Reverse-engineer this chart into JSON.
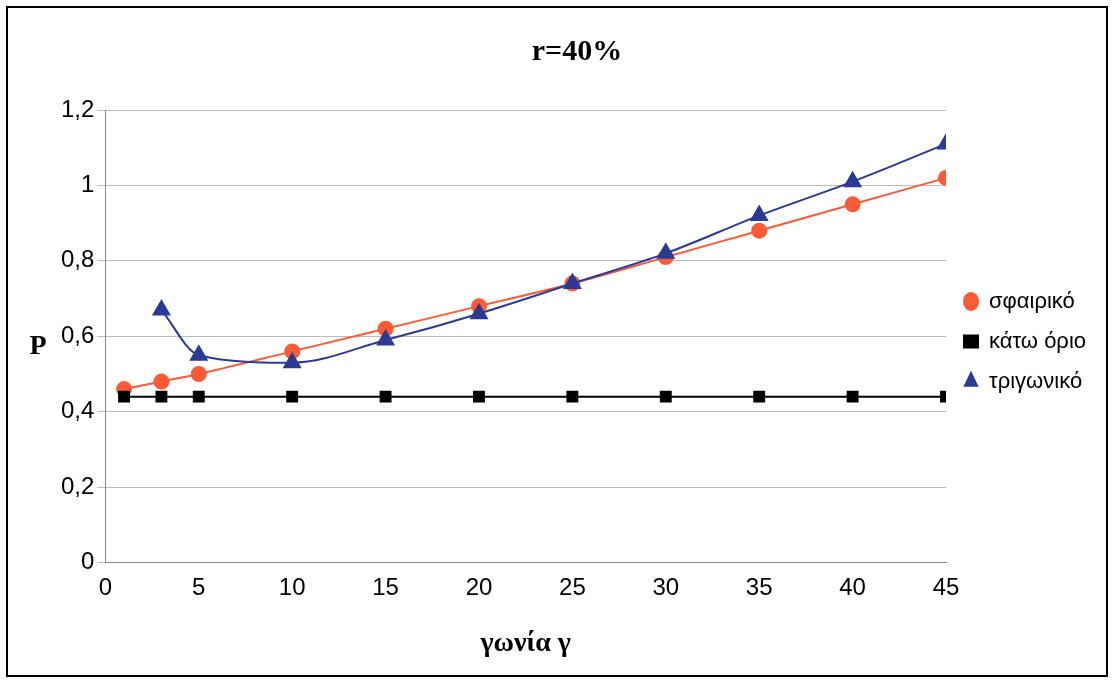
{
  "chart_data": {
    "type": "line",
    "title": "r=40%",
    "xlabel": "γωνία γ",
    "ylabel": "P",
    "x": [
      1,
      3,
      5,
      10,
      15,
      20,
      25,
      30,
      35,
      40,
      45
    ],
    "series": [
      {
        "name": "σφαιρικό",
        "color": "#ff5a36",
        "marker": "circle",
        "values": [
          0.46,
          0.48,
          0.5,
          0.56,
          0.62,
          0.68,
          0.74,
          0.81,
          0.88,
          0.95,
          1.02
        ]
      },
      {
        "name": "κάτω όριο",
        "color": "#000000",
        "marker": "square",
        "values": [
          0.44,
          0.44,
          0.44,
          0.44,
          0.44,
          0.44,
          0.44,
          0.44,
          0.44,
          0.44,
          0.44
        ]
      },
      {
        "name": "τριγωνικό",
        "color": "#2b3a92",
        "marker": "triangle",
        "values": [
          null,
          0.67,
          0.55,
          0.53,
          0.59,
          0.66,
          0.74,
          0.82,
          0.92,
          1.01,
          1.11
        ]
      }
    ],
    "xlim": [
      0,
      45
    ],
    "xticks": [
      0,
      5,
      10,
      15,
      20,
      25,
      30,
      35,
      40,
      45
    ],
    "ylim": [
      0,
      1.2
    ],
    "yticks": [
      0,
      {
        "value": 0.2,
        "label": "0,2"
      },
      {
        "value": 0.4,
        "label": "0,4"
      },
      {
        "value": 0.6,
        "label": "0,6"
      },
      {
        "value": 0.8,
        "label": "0,8"
      },
      1,
      {
        "value": 1.2,
        "label": "1,2"
      }
    ],
    "grid": "y",
    "legend": "right"
  }
}
